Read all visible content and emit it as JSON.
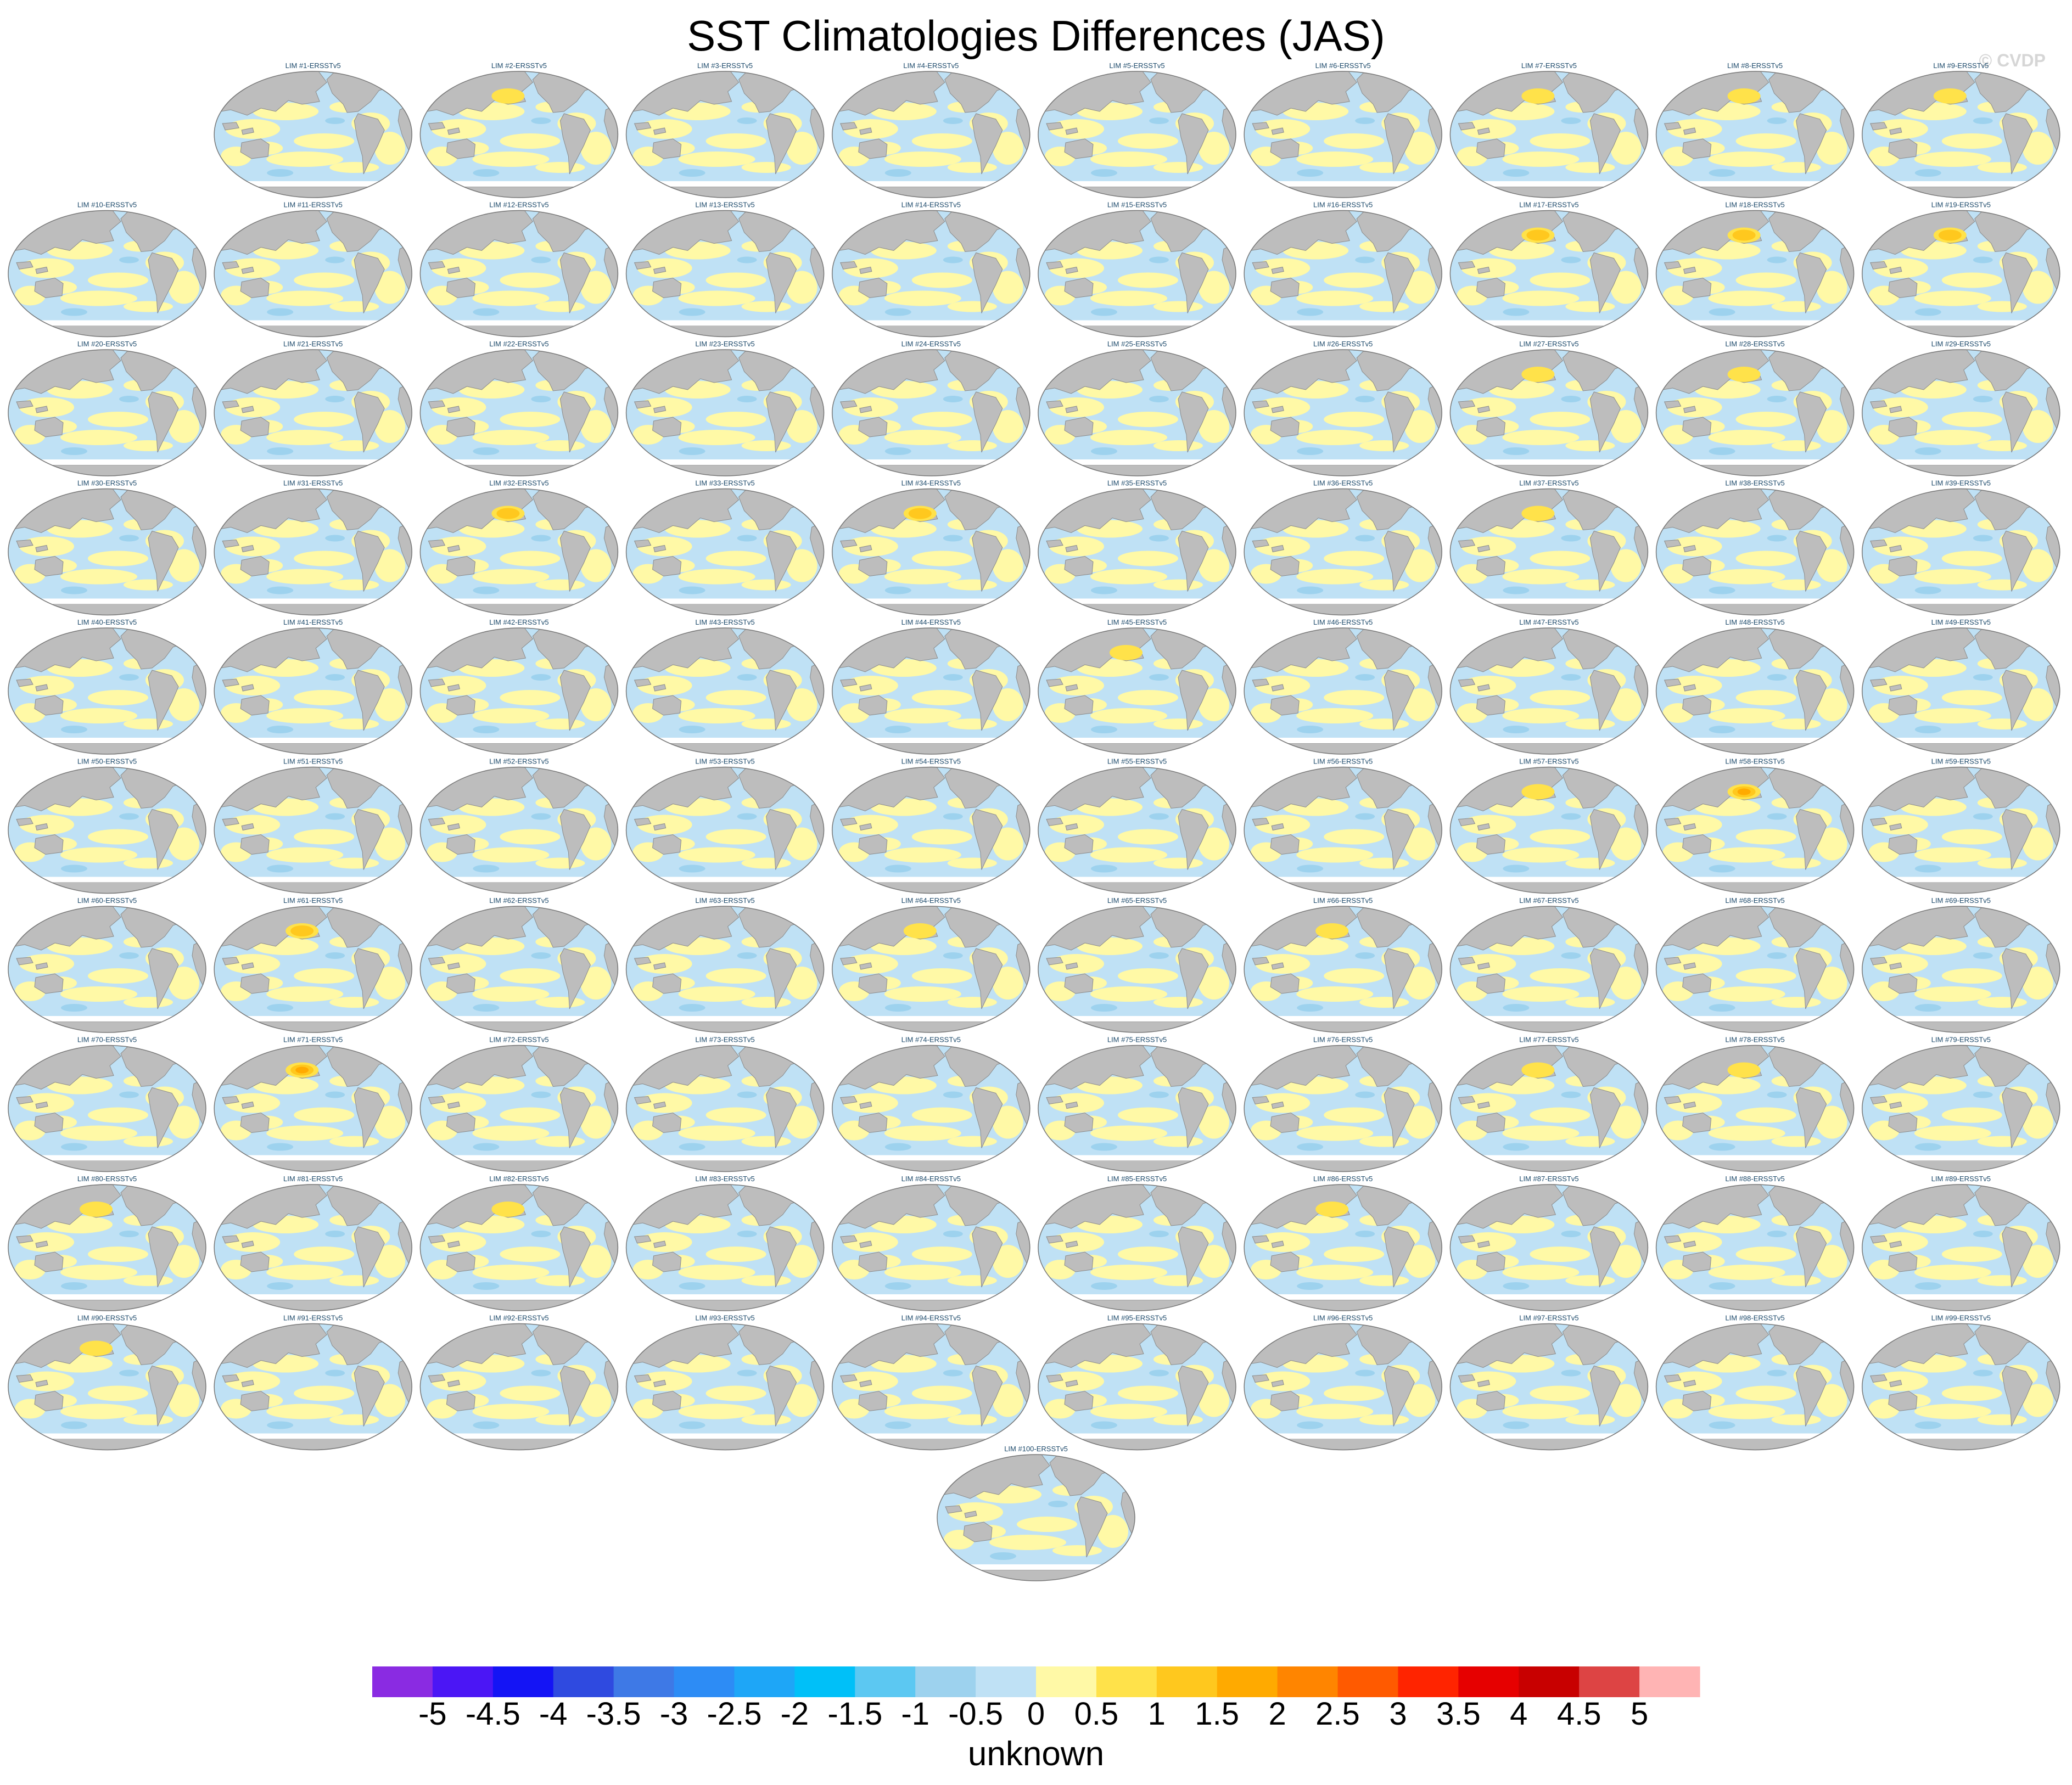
{
  "title": "SST Climatologies Differences (JAS)",
  "watermark": "© CVDP",
  "colorbar": {
    "label": "unknown",
    "ticks": [
      "-5",
      "-4.5",
      "-4",
      "-3.5",
      "-3",
      "-2.5",
      "-2",
      "-1.5",
      "-1",
      "-0.5",
      "0",
      "0.5",
      "1",
      "1.5",
      "2",
      "2.5",
      "3",
      "3.5",
      "4",
      "4.5",
      "5"
    ],
    "colors": [
      "#8a2be2",
      "#4b16f5",
      "#1414f5",
      "#2f4ae0",
      "#3e79e6",
      "#2d8cf5",
      "#1ea6f7",
      "#00c0f8",
      "#5cc8f2",
      "#9dd2ee",
      "#bfe1f5",
      "#fff9a6",
      "#ffe24a",
      "#ffc81e",
      "#ffaa00",
      "#ff8500",
      "#ff5a00",
      "#ff2400",
      "#e60000",
      "#c80000",
      "#dd4444",
      "#ffb4b4"
    ]
  },
  "chart_data": {
    "type": "map_panels",
    "title": "SST Climatologies Differences (JAS)",
    "colorbar_label": "unknown",
    "colorbar_range": [
      -5,
      5
    ],
    "colorbar_interval": 0.5,
    "panels": [
      {
        "label": "LIM #1-ERSSTv5",
        "hotspot": 0
      },
      {
        "label": "LIM #2-ERSSTv5",
        "hotspot": 1
      },
      {
        "label": "LIM #3-ERSSTv5",
        "hotspot": 0
      },
      {
        "label": "LIM #4-ERSSTv5",
        "hotspot": 0
      },
      {
        "label": "LIM #5-ERSSTv5",
        "hotspot": 0
      },
      {
        "label": "LIM #6-ERSSTv5",
        "hotspot": 0
      },
      {
        "label": "LIM #7-ERSSTv5",
        "hotspot": 1
      },
      {
        "label": "LIM #8-ERSSTv5",
        "hotspot": 1
      },
      {
        "label": "LIM #9-ERSSTv5",
        "hotspot": 1
      },
      {
        "label": "LIM #10-ERSSTv5",
        "hotspot": 0
      },
      {
        "label": "LIM #11-ERSSTv5",
        "hotspot": 0
      },
      {
        "label": "LIM #12-ERSSTv5",
        "hotspot": 0
      },
      {
        "label": "LIM #13-ERSSTv5",
        "hotspot": 0
      },
      {
        "label": "LIM #14-ERSSTv5",
        "hotspot": 0
      },
      {
        "label": "LIM #15-ERSSTv5",
        "hotspot": 0
      },
      {
        "label": "LIM #16-ERSSTv5",
        "hotspot": 0
      },
      {
        "label": "LIM #17-ERSSTv5",
        "hotspot": 2
      },
      {
        "label": "LIM #18-ERSSTv5",
        "hotspot": 2
      },
      {
        "label": "LIM #19-ERSSTv5",
        "hotspot": 2
      },
      {
        "label": "LIM #20-ERSSTv5",
        "hotspot": 0
      },
      {
        "label": "LIM #21-ERSSTv5",
        "hotspot": 0
      },
      {
        "label": "LIM #22-ERSSTv5",
        "hotspot": 0
      },
      {
        "label": "LIM #23-ERSSTv5",
        "hotspot": 0
      },
      {
        "label": "LIM #24-ERSSTv5",
        "hotspot": 0
      },
      {
        "label": "LIM #25-ERSSTv5",
        "hotspot": 0
      },
      {
        "label": "LIM #26-ERSSTv5",
        "hotspot": 0
      },
      {
        "label": "LIM #27-ERSSTv5",
        "hotspot": 1
      },
      {
        "label": "LIM #28-ERSSTv5",
        "hotspot": 1
      },
      {
        "label": "LIM #29-ERSSTv5",
        "hotspot": 0
      },
      {
        "label": "LIM #30-ERSSTv5",
        "hotspot": 0
      },
      {
        "label": "LIM #31-ERSSTv5",
        "hotspot": 0
      },
      {
        "label": "LIM #32-ERSSTv5",
        "hotspot": 2
      },
      {
        "label": "LIM #33-ERSSTv5",
        "hotspot": 0
      },
      {
        "label": "LIM #34-ERSSTv5",
        "hotspot": 2
      },
      {
        "label": "LIM #35-ERSSTv5",
        "hotspot": 0
      },
      {
        "label": "LIM #36-ERSSTv5",
        "hotspot": 0
      },
      {
        "label": "LIM #37-ERSSTv5",
        "hotspot": 1
      },
      {
        "label": "LIM #38-ERSSTv5",
        "hotspot": 0
      },
      {
        "label": "LIM #39-ERSSTv5",
        "hotspot": 0
      },
      {
        "label": "LIM #40-ERSSTv5",
        "hotspot": 0
      },
      {
        "label": "LIM #41-ERSSTv5",
        "hotspot": 0
      },
      {
        "label": "LIM #42-ERSSTv5",
        "hotspot": 0
      },
      {
        "label": "LIM #43-ERSSTv5",
        "hotspot": 0
      },
      {
        "label": "LIM #44-ERSSTv5",
        "hotspot": 0
      },
      {
        "label": "LIM #45-ERSSTv5",
        "hotspot": 1
      },
      {
        "label": "LIM #46-ERSSTv5",
        "hotspot": 0
      },
      {
        "label": "LIM #47-ERSSTv5",
        "hotspot": 0
      },
      {
        "label": "LIM #48-ERSSTv5",
        "hotspot": 0
      },
      {
        "label": "LIM #49-ERSSTv5",
        "hotspot": 0
      },
      {
        "label": "LIM #50-ERSSTv5",
        "hotspot": 0
      },
      {
        "label": "LIM #51-ERSSTv5",
        "hotspot": 0
      },
      {
        "label": "LIM #52-ERSSTv5",
        "hotspot": 0
      },
      {
        "label": "LIM #53-ERSSTv5",
        "hotspot": 0
      },
      {
        "label": "LIM #54-ERSSTv5",
        "hotspot": 0
      },
      {
        "label": "LIM #55-ERSSTv5",
        "hotspot": 0
      },
      {
        "label": "LIM #56-ERSSTv5",
        "hotspot": 0
      },
      {
        "label": "LIM #57-ERSSTv5",
        "hotspot": 1
      },
      {
        "label": "LIM #58-ERSSTv5",
        "hotspot": 3
      },
      {
        "label": "LIM #59-ERSSTv5",
        "hotspot": 0
      },
      {
        "label": "LIM #60-ERSSTv5",
        "hotspot": 0
      },
      {
        "label": "LIM #61-ERSSTv5",
        "hotspot": 2
      },
      {
        "label": "LIM #62-ERSSTv5",
        "hotspot": 0
      },
      {
        "label": "LIM #63-ERSSTv5",
        "hotspot": 0
      },
      {
        "label": "LIM #64-ERSSTv5",
        "hotspot": 1
      },
      {
        "label": "LIM #65-ERSSTv5",
        "hotspot": 0
      },
      {
        "label": "LIM #66-ERSSTv5",
        "hotspot": 1
      },
      {
        "label": "LIM #67-ERSSTv5",
        "hotspot": 0
      },
      {
        "label": "LIM #68-ERSSTv5",
        "hotspot": 0
      },
      {
        "label": "LIM #69-ERSSTv5",
        "hotspot": 0
      },
      {
        "label": "LIM #70-ERSSTv5",
        "hotspot": 0
      },
      {
        "label": "LIM #71-ERSSTv5",
        "hotspot": 3
      },
      {
        "label": "LIM #72-ERSSTv5",
        "hotspot": 0
      },
      {
        "label": "LIM #73-ERSSTv5",
        "hotspot": 0
      },
      {
        "label": "LIM #74-ERSSTv5",
        "hotspot": 0
      },
      {
        "label": "LIM #75-ERSSTv5",
        "hotspot": 0
      },
      {
        "label": "LIM #76-ERSSTv5",
        "hotspot": 0
      },
      {
        "label": "LIM #77-ERSSTv5",
        "hotspot": 1
      },
      {
        "label": "LIM #78-ERSSTv5",
        "hotspot": 1
      },
      {
        "label": "LIM #79-ERSSTv5",
        "hotspot": 0
      },
      {
        "label": "LIM #80-ERSSTv5",
        "hotspot": 1
      },
      {
        "label": "LIM #81-ERSSTv5",
        "hotspot": 0
      },
      {
        "label": "LIM #82-ERSSTv5",
        "hotspot": 1
      },
      {
        "label": "LIM #83-ERSSTv5",
        "hotspot": 0
      },
      {
        "label": "LIM #84-ERSSTv5",
        "hotspot": 0
      },
      {
        "label": "LIM #85-ERSSTv5",
        "hotspot": 0
      },
      {
        "label": "LIM #86-ERSSTv5",
        "hotspot": 1
      },
      {
        "label": "LIM #87-ERSSTv5",
        "hotspot": 0
      },
      {
        "label": "LIM #88-ERSSTv5",
        "hotspot": 0
      },
      {
        "label": "LIM #89-ERSSTv5",
        "hotspot": 0
      },
      {
        "label": "LIM #90-ERSSTv5",
        "hotspot": 1
      },
      {
        "label": "LIM #91-ERSSTv5",
        "hotspot": 0
      },
      {
        "label": "LIM #92-ERSSTv5",
        "hotspot": 0
      },
      {
        "label": "LIM #93-ERSSTv5",
        "hotspot": 0
      },
      {
        "label": "LIM #94-ERSSTv5",
        "hotspot": 0
      },
      {
        "label": "LIM #95-ERSSTv5",
        "hotspot": 0
      },
      {
        "label": "LIM #96-ERSSTv5",
        "hotspot": 0
      },
      {
        "label": "LIM #97-ERSSTv5",
        "hotspot": 0
      },
      {
        "label": "LIM #98-ERSSTv5",
        "hotspot": 0
      },
      {
        "label": "LIM #99-ERSSTv5",
        "hotspot": 0
      },
      {
        "label": "LIM #100-ERSSTv5",
        "hotspot": 0
      }
    ]
  }
}
